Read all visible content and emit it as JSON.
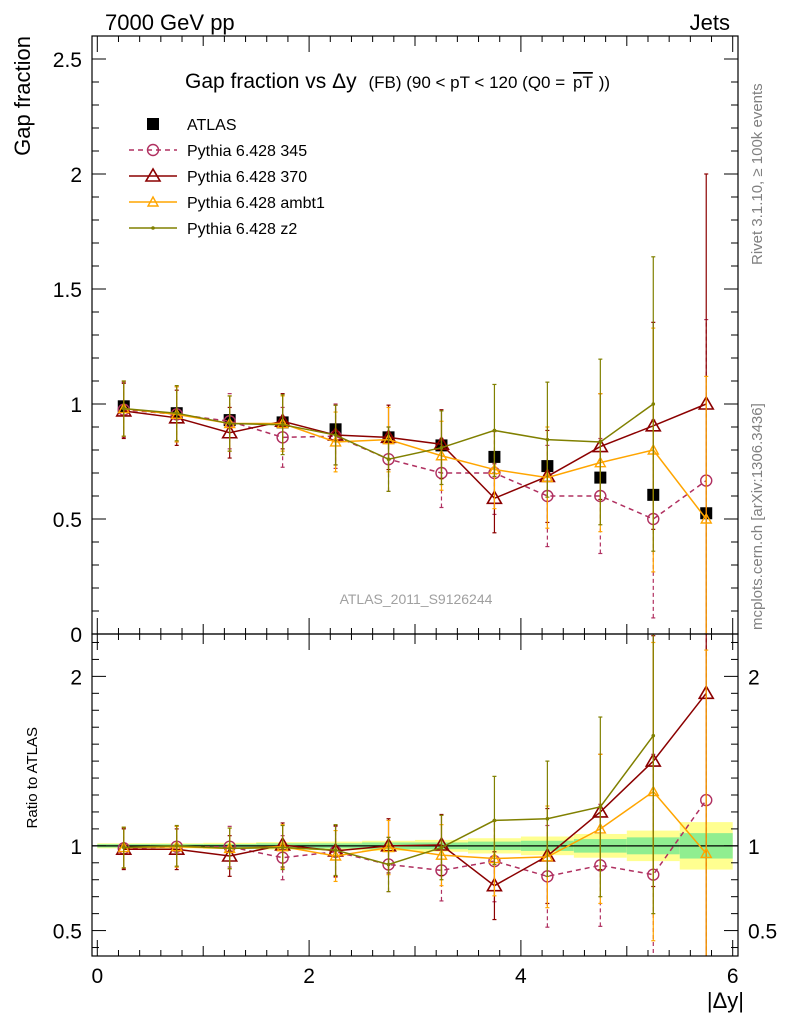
{
  "header": {
    "left": "7000 GeV pp",
    "right": "Jets",
    "title_main": "Gap fraction vs",
    "title_delta": "Δy",
    "title_cond": "(FB) (90 < pT < 120 (Q0 =",
    "title_pt": "pT",
    "title_end": "))",
    "side_rivet": "Rivet 3.1.10, ≥ 100k events",
    "side_mcplots": "mcplots.cern.ch [arXiv:1306.3436]",
    "watermark": "ATLAS_2011_S9126244"
  },
  "colors": {
    "data": "#000000",
    "p345": "#b03060",
    "p370": "#8b0000",
    "ambt1": "#ffa500",
    "z2": "#808000",
    "band_inner": "#90ee90",
    "band_outer": "#ffff90"
  },
  "chart_data": [
    {
      "type": "scatter",
      "ylabel": "Gap fraction",
      "ylim": [
        0,
        2.6
      ],
      "yticks": [
        "0",
        "0.5",
        "1",
        "1.5",
        "2",
        "2.5"
      ],
      "xlim": [
        -0.05,
        6.05
      ],
      "legend_placement": "top-left",
      "x": [
        0.25,
        0.75,
        1.25,
        1.75,
        2.25,
        2.75,
        3.25,
        3.75,
        4.25,
        4.75,
        5.25,
        5.75
      ],
      "series": [
        {
          "name": "ATLAS",
          "key": "data",
          "values": [
            0.99,
            0.96,
            0.93,
            0.92,
            0.89,
            0.855,
            0.82,
            0.77,
            0.73,
            0.68,
            0.605,
            0.525
          ],
          "err": [
            0.02,
            0.02,
            0.02,
            0.02,
            0.02,
            0.02,
            0.02,
            0.02,
            0.02,
            0.02,
            0.02,
            0.03
          ]
        },
        {
          "name": "Pythia 6.428 345",
          "key": "p345",
          "values": [
            0.975,
            0.955,
            0.925,
            0.855,
            0.86,
            0.76,
            0.7,
            0.7,
            0.6,
            0.6,
            0.5,
            0.667
          ],
          "err": [
            0.12,
            0.12,
            0.12,
            0.13,
            0.14,
            0.14,
            0.15,
            0.18,
            0.22,
            0.25,
            0.43,
            0.7
          ]
        },
        {
          "name": "Pythia 6.428 370",
          "key": "p370",
          "values": [
            0.97,
            0.94,
            0.875,
            0.925,
            0.865,
            0.855,
            0.825,
            0.59,
            0.685,
            0.815,
            0.905,
            1.0
          ],
          "err": [
            0.12,
            0.12,
            0.11,
            0.12,
            0.13,
            0.14,
            0.15,
            0.15,
            0.2,
            0.23,
            0.45,
            1.0
          ]
        },
        {
          "name": "Pythia 6.428 ambt1",
          "key": "ambt1",
          "values": [
            0.98,
            0.955,
            0.915,
            0.915,
            0.835,
            0.845,
            0.775,
            0.715,
            0.68,
            0.745,
            0.8,
            0.5
          ],
          "err": [
            0.12,
            0.12,
            0.12,
            0.12,
            0.13,
            0.14,
            0.15,
            0.17,
            0.22,
            0.3,
            0.53,
            0.62
          ]
        },
        {
          "name": "Pythia 6.428 z2",
          "key": "z2",
          "values": [
            0.98,
            0.96,
            0.915,
            0.91,
            0.865,
            0.76,
            0.81,
            0.885,
            0.845,
            0.835,
            1.0,
            null
          ],
          "err": [
            0.12,
            0.12,
            0.12,
            0.13,
            0.13,
            0.14,
            0.16,
            0.2,
            0.25,
            0.36,
            0.64,
            null
          ]
        }
      ]
    },
    {
      "type": "scatter",
      "ylabel": "Ratio to ATLAS",
      "xlabel": "|Δy|",
      "ylim": [
        0.35,
        2.25
      ],
      "yticks": [
        "0.5",
        "1",
        "2"
      ],
      "xticks": [
        "0",
        "2",
        "4",
        "6"
      ],
      "xlim": [
        -0.05,
        6.05
      ],
      "x": [
        0.25,
        0.75,
        1.25,
        1.75,
        2.25,
        2.75,
        3.25,
        3.75,
        4.25,
        4.75,
        5.25,
        5.75
      ],
      "band_edges": [
        0,
        0.5,
        1,
        1.5,
        2,
        2.5,
        3,
        3.5,
        4,
        4.5,
        5,
        5.5,
        6
      ],
      "band_inner": [
        0.01,
        0.01,
        0.01,
        0.015,
        0.015,
        0.02,
        0.02,
        0.025,
        0.03,
        0.04,
        0.05,
        0.075
      ],
      "band_outer": [
        0.015,
        0.015,
        0.018,
        0.022,
        0.025,
        0.03,
        0.035,
        0.045,
        0.055,
        0.07,
        0.09,
        0.14
      ],
      "series": [
        {
          "name": "Pythia 6.428 345",
          "key": "p345",
          "values": [
            0.985,
            0.995,
            0.995,
            0.93,
            0.965,
            0.89,
            0.855,
            0.91,
            0.82,
            0.885,
            0.83,
            1.27
          ],
          "err": [
            0.12,
            0.12,
            0.12,
            0.13,
            0.15,
            0.16,
            0.18,
            0.24,
            0.3,
            0.36,
            0.71,
            1.3
          ]
        },
        {
          "name": "Pythia 6.428 370",
          "key": "p370",
          "values": [
            0.98,
            0.98,
            0.94,
            1.005,
            0.97,
            1.0,
            1.005,
            0.765,
            0.94,
            1.2,
            1.5,
            1.9
          ],
          "err": [
            0.12,
            0.12,
            0.12,
            0.13,
            0.15,
            0.16,
            0.18,
            0.2,
            0.28,
            0.34,
            0.74,
            1.9
          ]
        },
        {
          "name": "Pythia 6.428 ambt1",
          "key": "ambt1",
          "values": [
            0.99,
            0.995,
            0.985,
            0.995,
            0.94,
            0.99,
            0.945,
            0.925,
            0.935,
            1.1,
            1.32,
            0.955
          ],
          "err": [
            0.12,
            0.12,
            0.12,
            0.13,
            0.15,
            0.16,
            0.18,
            0.22,
            0.3,
            0.44,
            0.88,
            1.2
          ]
        },
        {
          "name": "Pythia 6.428 z2",
          "key": "z2",
          "values": [
            0.99,
            1.0,
            0.985,
            0.99,
            0.975,
            0.89,
            0.99,
            1.15,
            1.16,
            1.23,
            1.65,
            null
          ],
          "err": [
            0.12,
            0.12,
            0.12,
            0.13,
            0.15,
            0.16,
            0.19,
            0.26,
            0.34,
            0.53,
            1.05,
            null
          ]
        }
      ]
    }
  ]
}
